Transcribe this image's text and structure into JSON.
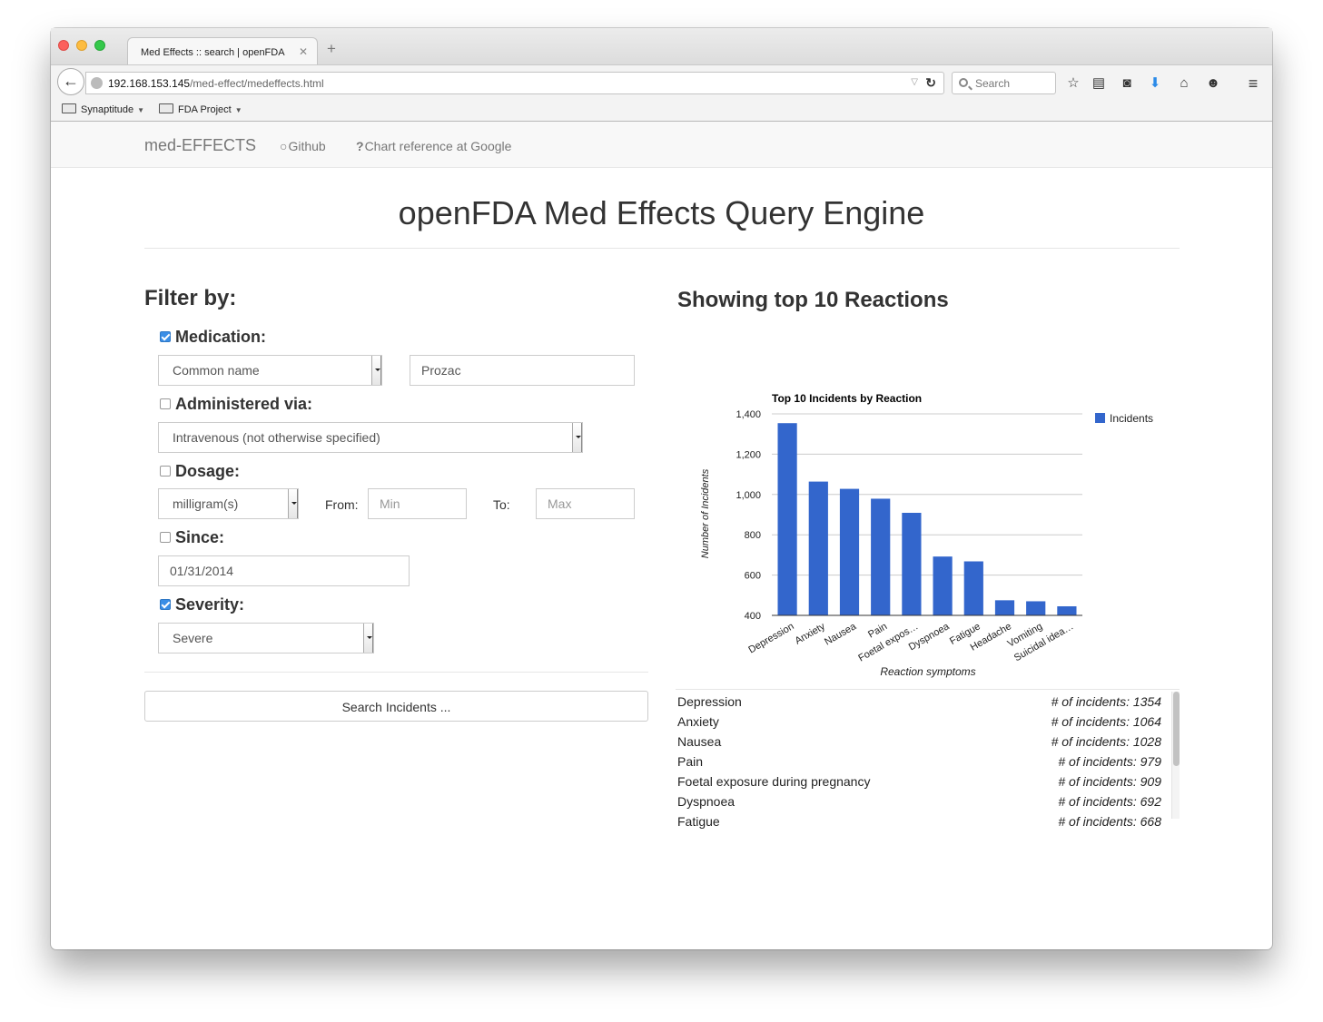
{
  "browser": {
    "tab_title": "Med Effects :: search | openFDA",
    "url_host": "192.168.153.145",
    "url_path": "/med-effect/medeffects.html",
    "search_placeholder": "Search",
    "bookmarks": [
      "Synaptitude",
      "FDA Project"
    ]
  },
  "site_nav": {
    "brand": "med-EFFECTS",
    "links": [
      "Github",
      "Chart reference at Google"
    ]
  },
  "page_title": "openFDA Med Effects Query Engine",
  "filter": {
    "heading": "Filter by:",
    "medication": {
      "label": "Medication:",
      "checked": true,
      "type_value": "Common name",
      "name_value": "Prozac"
    },
    "route": {
      "label": "Administered via:",
      "checked": false,
      "value": "Intravenous (not otherwise specified)"
    },
    "dosage": {
      "label": "Dosage:",
      "checked": false,
      "unit": "milligram(s)",
      "from_label": "From:",
      "from_placeholder": "Min",
      "to_label": "To:",
      "to_placeholder": "Max"
    },
    "since": {
      "label": "Since:",
      "checked": false,
      "value": "01/31/2014"
    },
    "severity": {
      "label": "Severity:",
      "checked": true,
      "value": "Severe"
    },
    "search_button": "Search Incidents ..."
  },
  "results": {
    "heading": "Showing top 10 Reactions",
    "items": [
      {
        "name": "Depression",
        "count": "# of incidents: 1354"
      },
      {
        "name": "Anxiety",
        "count": "# of incidents: 1064"
      },
      {
        "name": "Nausea",
        "count": "# of incidents: 1028"
      },
      {
        "name": "Pain",
        "count": "# of incidents: 979"
      },
      {
        "name": "Foetal exposure during pregnancy",
        "count": "# of incidents: 909"
      },
      {
        "name": "Dyspnoea",
        "count": "# of incidents: 692"
      },
      {
        "name": "Fatigue",
        "count": "# of incidents: 668"
      }
    ]
  },
  "chart_data": {
    "type": "bar",
    "title": "Top 10 Incidents by Reaction",
    "xlabel": "Reaction symptoms",
    "ylabel": "Number of Incidents",
    "categories": [
      "Depression",
      "Anxiety",
      "Nausea",
      "Pain",
      "Foetal expos…",
      "Dyspnoea",
      "Fatigue",
      "Headache",
      "Vomiting",
      "Suicidal idea…"
    ],
    "series": [
      {
        "name": "Incidents",
        "values": [
          1354,
          1064,
          1028,
          979,
          909,
          692,
          668,
          475,
          470,
          445
        ]
      }
    ],
    "ylim": [
      400,
      1400
    ],
    "yticks": [
      "400",
      "600",
      "800",
      "1,000",
      "1,200",
      "1,400"
    ],
    "color": "#3366cc",
    "grid": true,
    "legend": "right"
  }
}
